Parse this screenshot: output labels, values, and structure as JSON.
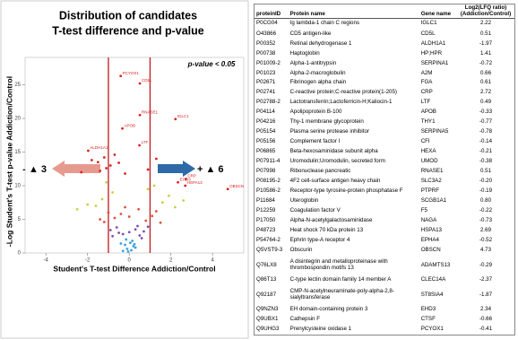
{
  "chart_data": {
    "type": "scatter",
    "title": "Distribution of candidates",
    "subtitle": "T-test difference and p-value",
    "annotation": "p-value < 0.05",
    "left_arrow": "- ▲ 3",
    "right_arrow": "+ ▲ 6",
    "xlabel": "Student's T-test Difference Addiction/Control",
    "ylabel": "-Log Student's T-test p-value Addiction/Control",
    "xlim": [
      -5,
      5.5
    ],
    "ylim": [
      0,
      28
    ],
    "xticks": [
      -4,
      -2,
      0,
      2,
      4
    ],
    "yticks": [
      0,
      5,
      10,
      15,
      20,
      25
    ],
    "vlines": [
      -1,
      1
    ],
    "vline_color": "#c0191e",
    "series": [
      {
        "color": "#d92020",
        "labels": [
          "IGLC1",
          "CD5L",
          "ALDH1A1",
          "RNASE1",
          "APOB",
          "LTF",
          "PCYOX1",
          "HSPA13",
          "CRP",
          "OBSCN",
          "EHD3"
        ],
        "x": [
          2.22,
          0.51,
          -1.97,
          0.51,
          -0.33,
          0.49,
          -0.41,
          2.69,
          2.72,
          4.73,
          2.34
        ],
        "values": [
          19.9,
          25.2,
          15.2,
          20.5,
          18.5,
          16,
          26.3,
          10,
          11,
          9.5,
          10.5
        ]
      },
      {
        "color": "#d92020",
        "x": [
          -1.5,
          -1.2,
          -0.9,
          -0.7,
          -1.8,
          -1.1,
          -0.5,
          -1.4,
          0.9,
          1.3,
          -2.3,
          -0.2
        ],
        "values": [
          13.5,
          14.2,
          13,
          14.6,
          13.8,
          12.6,
          13.4,
          12.2,
          12.4,
          14,
          12,
          11.8
        ]
      },
      {
        "color": "#c8d040",
        "x": [
          -1.6,
          -1.3,
          1.6,
          1.9,
          -2,
          2.2,
          -0.8,
          0.9,
          -1.1,
          1.2,
          -2.5,
          2.6
        ],
        "values": [
          7,
          8,
          7.5,
          8.5,
          7.2,
          6.8,
          9,
          9.5,
          10.5,
          10,
          6.5,
          7.8
        ]
      },
      {
        "color": "#e0503a",
        "x": [
          -1.2,
          -0.7,
          0.8,
          1.1,
          -1,
          1.3,
          -0.4,
          0.45,
          -1.4,
          1.5,
          0,
          -0.2
        ],
        "values": [
          4.6,
          5.2,
          4.8,
          5.5,
          6,
          6.2,
          5.8,
          6.5,
          5,
          4.5,
          5.4,
          6.8
        ]
      },
      {
        "color": "#7a4fb0",
        "x": [
          -0.8,
          -0.5,
          0.5,
          0.7,
          -0.3,
          0.3,
          -0.6,
          0.6,
          0,
          -0.9,
          0.9,
          0.4
        ],
        "values": [
          2.5,
          3,
          2.6,
          3.2,
          2.8,
          3.5,
          3.8,
          2.2,
          3.1,
          3.4,
          3.9,
          4
        ]
      },
      {
        "color": "#3aa0e0",
        "x": [
          -0.3,
          -0.1,
          0.1,
          0.2,
          -0.2,
          0.05,
          0.3,
          -0.4,
          0.15,
          -0.05,
          0.25,
          -0.15
        ],
        "values": [
          0.3,
          0.6,
          0.4,
          1,
          1.2,
          1.5,
          0.8,
          1.4,
          1.8,
          0.2,
          1.3,
          2
        ]
      }
    ]
  },
  "table": {
    "columns": [
      "proteinID",
      "Protein name",
      "Gene name",
      "Log2(LFQ ratio) (Addiction/Control)"
    ],
    "rows": [
      [
        "P0CG04",
        "Ig lambda-1 chain C regions",
        "IGLC1",
        "2.22"
      ],
      [
        "O43866",
        "CD5 antigen-like",
        "CD5L",
        "0.51"
      ],
      [
        "P00352",
        "Retinal dehydrogenase 1",
        "ALDH1A1",
        "-1.97"
      ],
      [
        "P00738",
        "Haptoglobin",
        "HP;HPR",
        "1.41"
      ],
      [
        "P01009-2",
        "Alpha-1-antitrypsin",
        "SERPINA1",
        "-0.72"
      ],
      [
        "P01023",
        "Alpha-2-macroglobulin",
        "A2M",
        "0.66"
      ],
      [
        "P02671",
        "Fibrinogen alpha chain",
        "FGA",
        "0.61"
      ],
      [
        "P02741",
        "C-reactive protein;C-reactive protein(1-205)",
        "CRP",
        "2.72"
      ],
      [
        "P02788-2",
        "Lactotransferrin;Lactoferricin-H;Kaliocin-1",
        "LTF",
        "0.49"
      ],
      [
        "P04114",
        "Apolipoprotein B-100",
        "APOB",
        "-0.33"
      ],
      [
        "P04216",
        "Thy-1 membrane glycoprotein",
        "THY1",
        "-0.77"
      ],
      [
        "P05154",
        "Plasma serine protease inhibitor",
        "SERPINA5",
        "-0.78"
      ],
      [
        "P05156",
        "Complement factor I",
        "CFI",
        "-0.14"
      ],
      [
        "P06865",
        "Beta-hexosaminidase subunit alpha",
        "HEXA",
        "-0.21"
      ],
      [
        "P07911-4",
        "Uromodulin;Uromodulin, secreted form",
        "UMOD",
        "-0.38"
      ],
      [
        "P07998",
        "Ribonuclease pancreatic",
        "RNASE1",
        "0.51"
      ],
      [
        "P08195-2",
        "4F2 cell-surface antigen heavy chain",
        "SLC3A2",
        "-0.20"
      ],
      [
        "P10586-2",
        "Receptor-type tyrosine-protein phosphatase F",
        "PTPRF",
        "-0.19"
      ],
      [
        "P11684",
        "Uteroglobin",
        "SCGB1A1",
        "0.80"
      ],
      [
        "P12259",
        "Coagulation factor V",
        "F5",
        "-0.22"
      ],
      [
        "P17050",
        "Alpha-N-acetylgalactosaminidase",
        "NAGA",
        "-0.73"
      ],
      [
        "P48723",
        "Heat shock 70 kDa protein 13",
        "HSPA13",
        "2.69"
      ],
      [
        "P54764-2",
        "Ephrin type-A receptor 4",
        "EPHA4",
        "-0.52"
      ],
      [
        "Q5VST9-3",
        "Obscurin",
        "OBSCN",
        "4.73"
      ],
      [
        "Q76LX8",
        "A disintegrin and metalloproteinase with thrombospondin motifs 13",
        "ADAMTS13",
        "-0.29"
      ],
      [
        "Q86T13",
        "C-type lectin domain family 14 member A",
        "CLEC14A",
        "-2.37"
      ],
      [
        "Q92187",
        "CMP-N-acetylneuraminate-poly-alpha-2,8-sialyltransferase",
        "ST8SIA4",
        "-1.87"
      ],
      [
        "Q9NZN3",
        "EH domain-containing protein 3",
        "EHD3",
        "2.34"
      ],
      [
        "Q9UBX1",
        "Cathepsin F",
        "CTSF",
        "-0.66"
      ],
      [
        "Q9UHG3",
        "Prenylcysteine oxidase 1",
        "PCYOX1",
        "-0.41"
      ]
    ]
  }
}
